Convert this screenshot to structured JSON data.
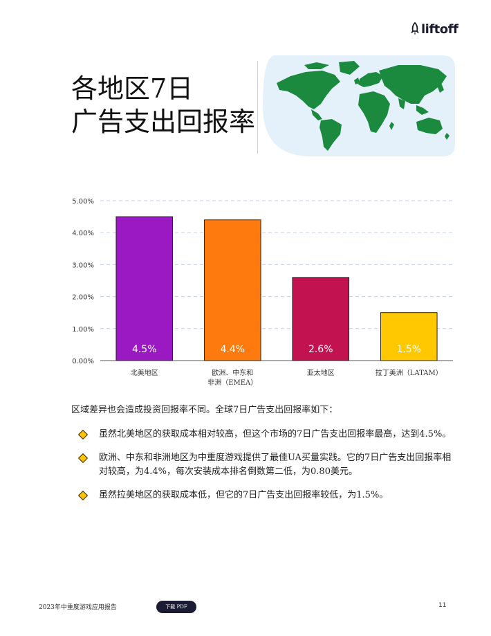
{
  "header": {
    "logo_text": "liftoff",
    "logo_icon": "rocket-icon"
  },
  "title": {
    "line1": "各地区7日",
    "line2": "广告支出回报率"
  },
  "colors": {
    "north_america": "#9b19c2",
    "emea": "#ff7a0e",
    "apac": "#c2124f",
    "latam": "#ffc800",
    "map_bg": "#e4f1fb",
    "map_land": "#1c8a3e"
  },
  "chart_data": {
    "type": "bar",
    "categories": [
      "北美地区",
      "欧洲、中东和\n非洲（EMEA）",
      "亚太地区",
      "拉丁美洲（LATAM）"
    ],
    "category_lines": [
      [
        "北美地区"
      ],
      [
        "欧洲、中东和",
        "非洲（EMEA）"
      ],
      [
        "亚太地区"
      ],
      [
        "拉丁美洲（LATAM）"
      ]
    ],
    "values": [
      4.5,
      4.4,
      2.6,
      1.5
    ],
    "bar_labels": [
      "4.5%",
      "4.4%",
      "2.6%",
      "1.5%"
    ],
    "bar_colors": [
      "#9b19c2",
      "#ff7a0e",
      "#c2124f",
      "#ffc800"
    ],
    "yticks": [
      "0.00%",
      "1.00%",
      "2.00%",
      "3.00%",
      "4.00%",
      "5.00%"
    ],
    "ylim": [
      0,
      5
    ],
    "grid": true,
    "title": "",
    "xlabel": "",
    "ylabel": ""
  },
  "body": {
    "intro": "区域差异也会造成投资回报率不同。全球7日广告支出回报率如下：",
    "bullets": [
      "虽然北美地区的获取成本相对较高，但这个市场的7日广告支出回报率最高，达到4.5%。",
      "欧洲、中东和非洲地区为中重度游戏提供了最佳UA买量实践。它的7日广告支出回报率相对较高，为4.4%，每次安装成本排名倒数第二低，为0.80美元。",
      "虽然拉美地区的获取成本低，但它的7日广告支出回报率较低，为1.5%。"
    ]
  },
  "footer": {
    "report_name": "2023年中重度游戏应用报告",
    "download_label": "下载 PDF",
    "page_number": "11"
  }
}
